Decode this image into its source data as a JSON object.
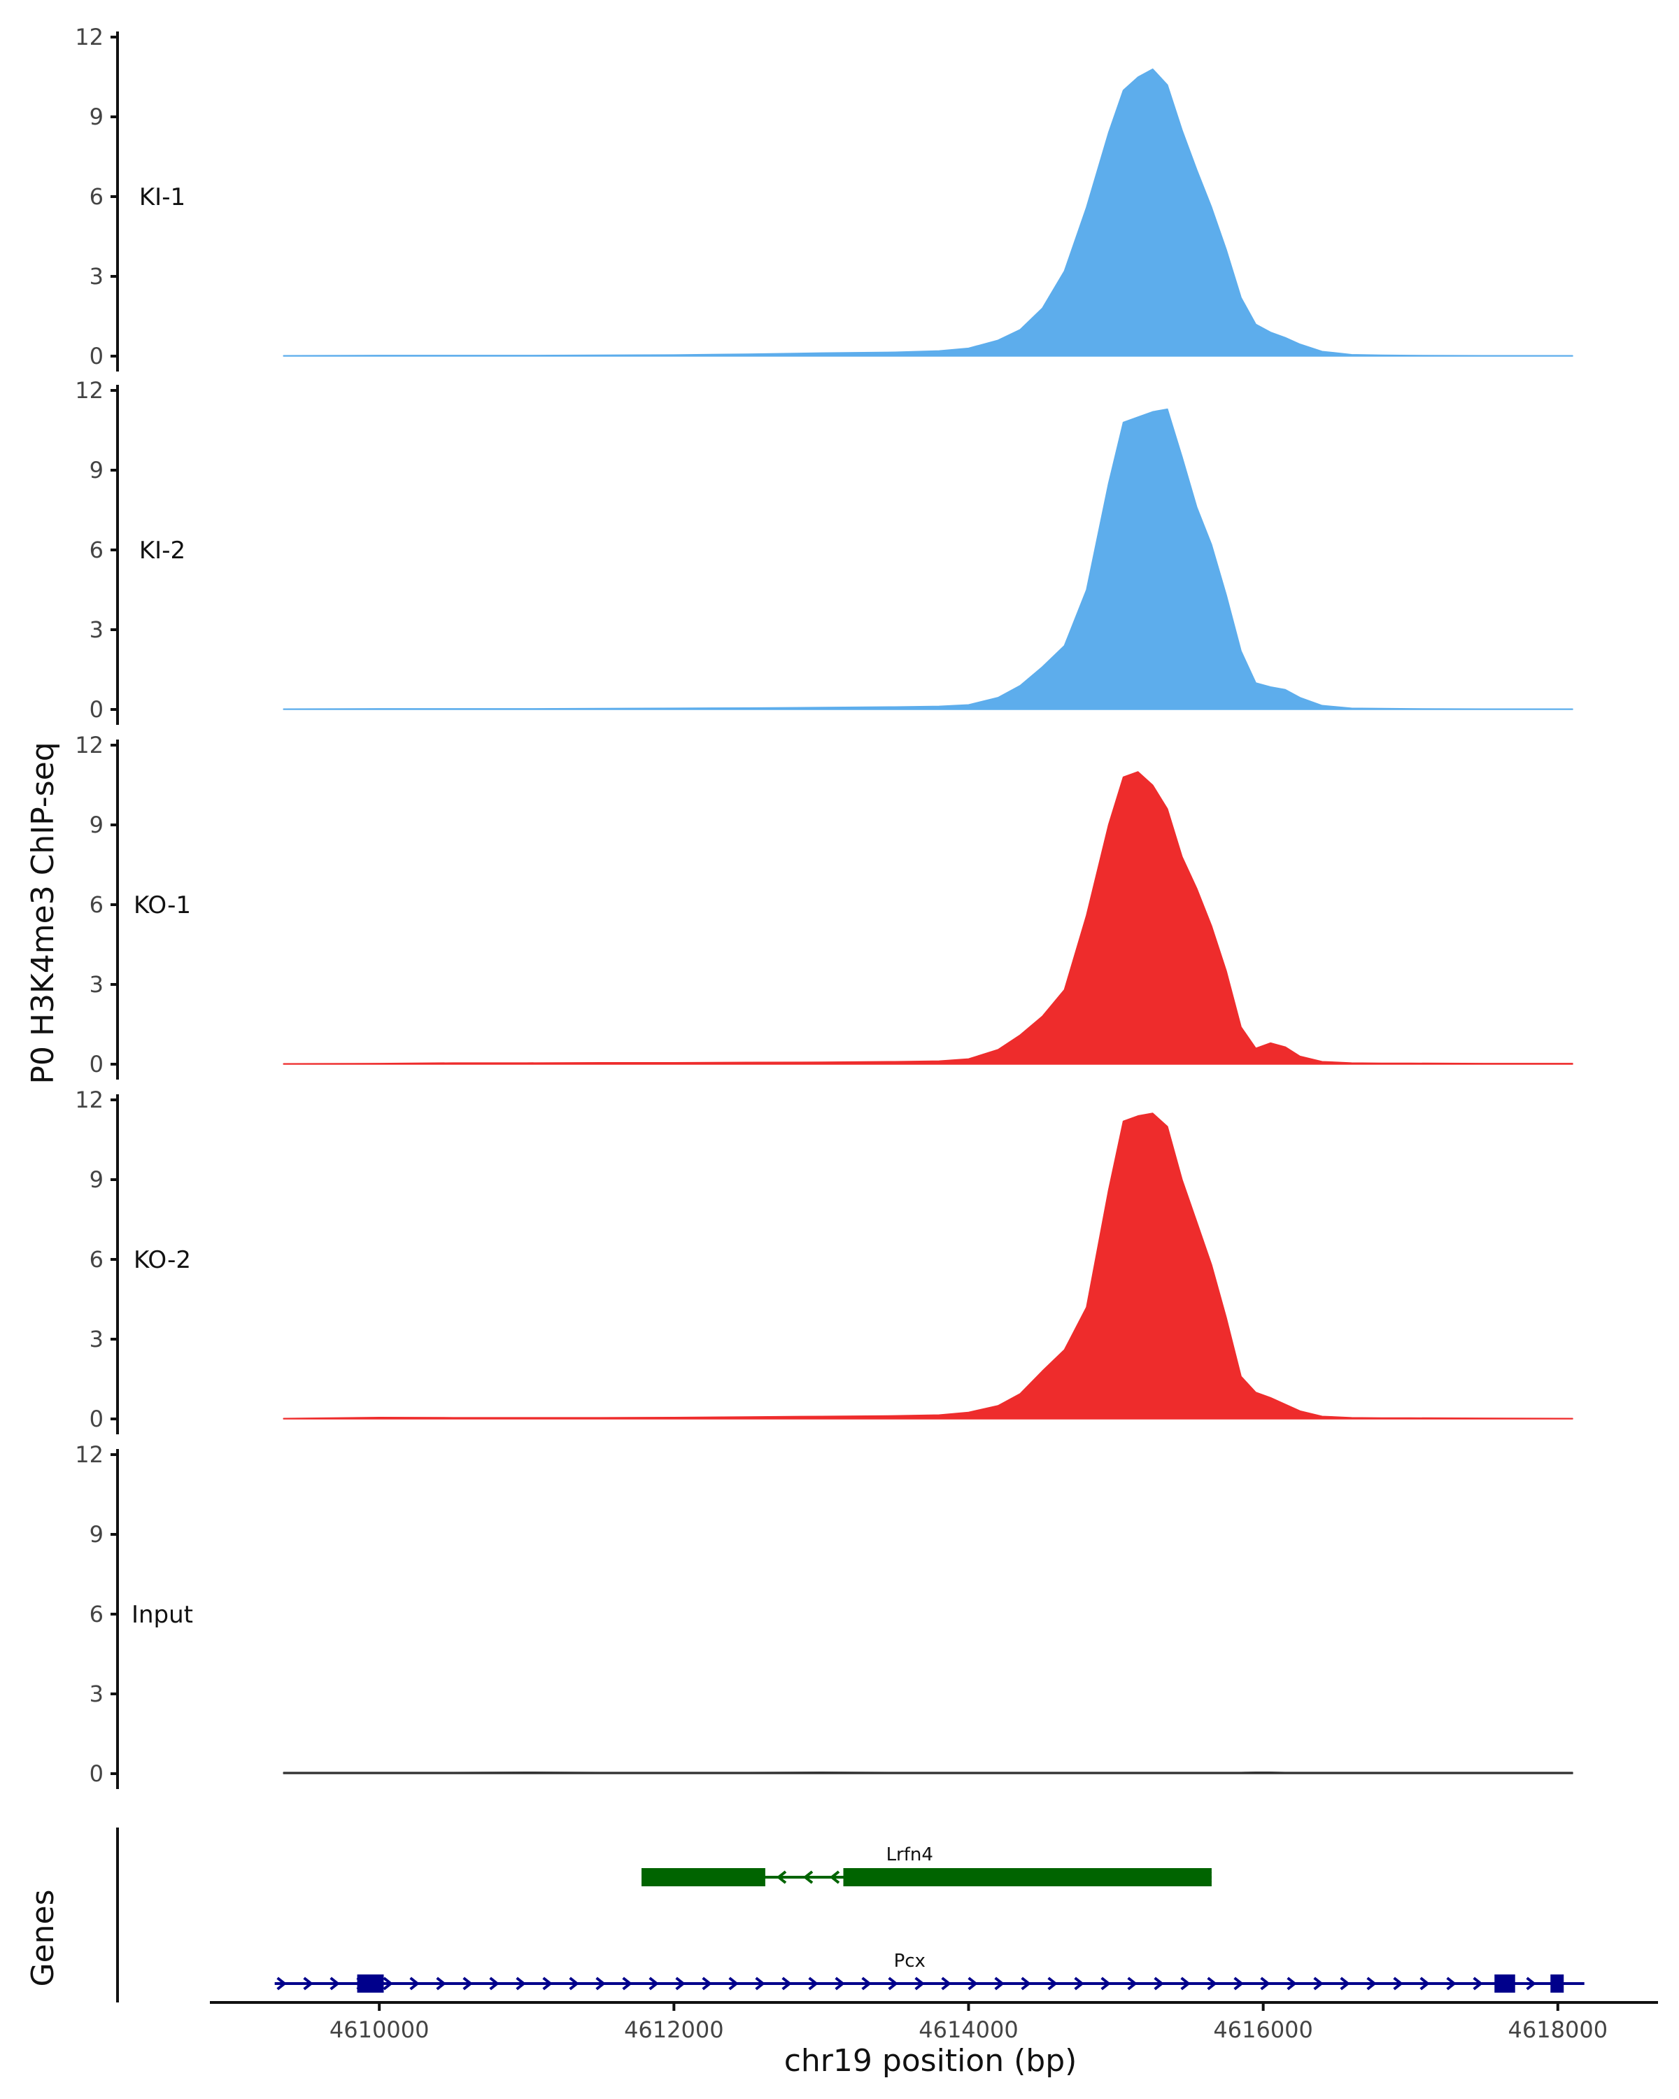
{
  "chart_data": {
    "type": "area",
    "ylabel": "P0 H3K4me3 ChIP-seq",
    "xlabel": "chr19 position (bp)",
    "xlim": [
      4608850,
      4618680
    ],
    "x_ticks": [
      4610000,
      4612000,
      4614000,
      4616000,
      4618000
    ],
    "x_tick_labels": [
      "4610000",
      "4612000",
      "4614000",
      "4616000",
      "4618000"
    ],
    "ylim": [
      0,
      12
    ],
    "y_ticks": [
      0,
      3,
      6,
      9,
      12
    ],
    "y_tick_labels": [
      "0",
      "3",
      "6",
      "9",
      "12"
    ],
    "x": [
      4609350,
      4610000,
      4610500,
      4611000,
      4611500,
      4612000,
      4612500,
      4613000,
      4613500,
      4613800,
      4614000,
      4614200,
      4614350,
      4614500,
      4614650,
      4614800,
      4614950,
      4615050,
      4615150,
      4615250,
      4615350,
      4615450,
      4615550,
      4615650,
      4615750,
      4615850,
      4615950,
      4616050,
      4616150,
      4616250,
      4616400,
      4616600,
      4616800,
      4617000,
      4617500,
      4618100
    ],
    "series": [
      {
        "name": "KI-1",
        "color": "#5DADEC",
        "values": [
          0.02,
          0.03,
          0.03,
          0.03,
          0.04,
          0.05,
          0.08,
          0.12,
          0.15,
          0.2,
          0.3,
          0.6,
          1.0,
          1.8,
          3.2,
          5.6,
          8.4,
          10.0,
          10.5,
          10.8,
          10.2,
          8.5,
          7.0,
          5.6,
          4.0,
          2.2,
          1.2,
          0.9,
          0.7,
          0.45,
          0.18,
          0.06,
          0.04,
          0.03,
          0.02,
          0.02
        ]
      },
      {
        "name": "KI-2",
        "color": "#5DADEC",
        "values": [
          0.02,
          0.03,
          0.03,
          0.03,
          0.04,
          0.05,
          0.06,
          0.08,
          0.1,
          0.12,
          0.18,
          0.45,
          0.9,
          1.6,
          2.4,
          4.5,
          8.5,
          10.8,
          11.0,
          11.2,
          11.3,
          9.5,
          7.6,
          6.2,
          4.3,
          2.2,
          1.0,
          0.85,
          0.75,
          0.45,
          0.15,
          0.05,
          0.04,
          0.03,
          0.02,
          0.02
        ]
      },
      {
        "name": "KO-1",
        "color": "#EE2C2C",
        "values": [
          0.02,
          0.03,
          0.05,
          0.05,
          0.06,
          0.06,
          0.07,
          0.08,
          0.1,
          0.12,
          0.2,
          0.55,
          1.1,
          1.8,
          2.8,
          5.6,
          9.0,
          10.8,
          11.0,
          10.5,
          9.6,
          7.8,
          6.6,
          5.2,
          3.5,
          1.4,
          0.6,
          0.8,
          0.65,
          0.3,
          0.1,
          0.05,
          0.04,
          0.04,
          0.03,
          0.03
        ]
      },
      {
        "name": "KO-2",
        "color": "#EE2C2C",
        "values": [
          0.02,
          0.06,
          0.05,
          0.05,
          0.05,
          0.06,
          0.08,
          0.1,
          0.12,
          0.15,
          0.25,
          0.5,
          0.95,
          1.8,
          2.6,
          4.2,
          8.6,
          11.2,
          11.4,
          11.5,
          11.0,
          9.0,
          7.4,
          5.8,
          3.8,
          1.6,
          1.0,
          0.8,
          0.55,
          0.3,
          0.1,
          0.05,
          0.04,
          0.04,
          0.03,
          0.02
        ]
      },
      {
        "name": "Input",
        "color": "#333333",
        "values": [
          0.05,
          0.05,
          0.05,
          0.06,
          0.05,
          0.05,
          0.05,
          0.06,
          0.05,
          0.05,
          0.05,
          0.05,
          0.05,
          0.05,
          0.05,
          0.05,
          0.05,
          0.05,
          0.05,
          0.05,
          0.05,
          0.05,
          0.05,
          0.05,
          0.05,
          0.05,
          0.06,
          0.06,
          0.05,
          0.05,
          0.05,
          0.05,
          0.05,
          0.05,
          0.05,
          0.05
        ]
      }
    ],
    "genes_track": {
      "label": "Genes",
      "genes": [
        {
          "name": "Lrfn4",
          "strand": "-",
          "color": "#006400",
          "start": 4611780,
          "end": 4615650,
          "exons": [
            [
              4611780,
              4612620
            ],
            [
              4613150,
              4615650
            ]
          ]
        },
        {
          "name": "Pcx",
          "strand": "+",
          "color": "#00008B",
          "start": 4609290,
          "end": 4618180,
          "exons": [
            [
              4609850,
              4610030
            ],
            [
              4617570,
              4617710
            ],
            [
              4617950,
              4618040
            ]
          ]
        }
      ]
    },
    "grid": false,
    "legend": "none"
  }
}
